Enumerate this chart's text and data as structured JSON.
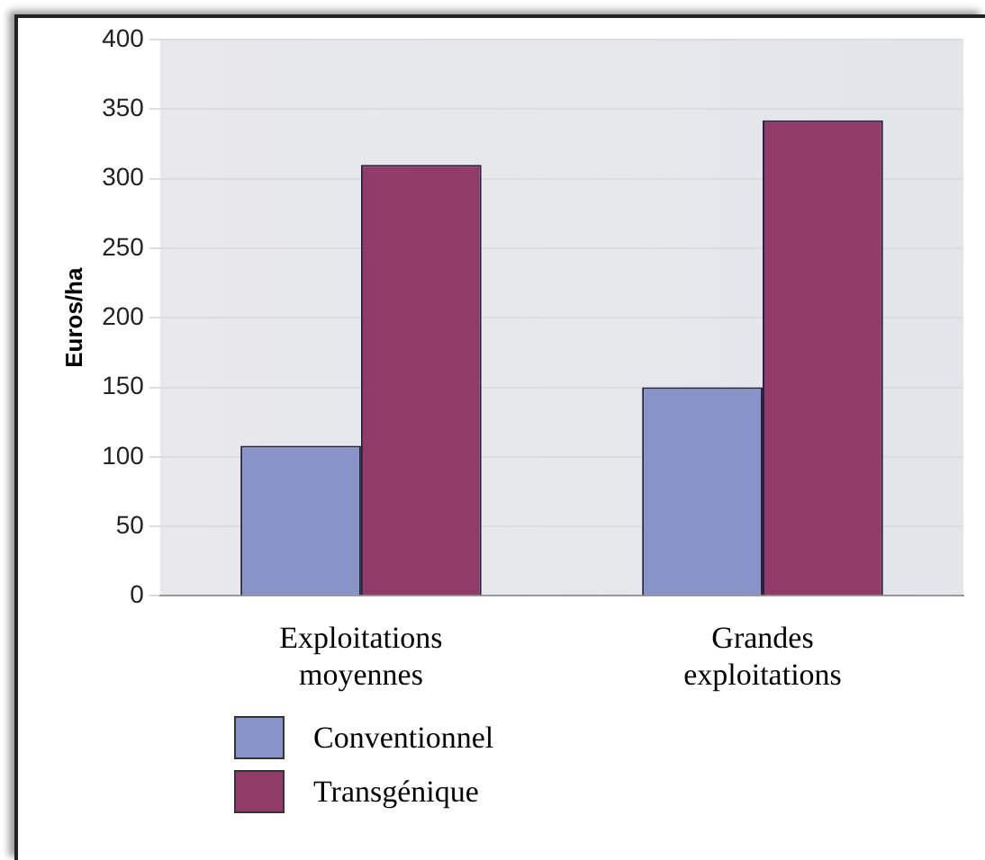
{
  "chart_data": {
    "type": "bar",
    "ylabel": "Euros/ha",
    "categories": [
      "Exploitations moyennes",
      "Grandes exploitations"
    ],
    "series": [
      {
        "name": "Conventionnel",
        "color": "#8894c8",
        "values": [
          108,
          150
        ]
      },
      {
        "name": "Transgénique",
        "color": "#913c68",
        "values": [
          310,
          342
        ]
      }
    ],
    "ylim": [
      0,
      400
    ],
    "yticks": [
      0,
      50,
      100,
      150,
      200,
      250,
      300,
      350,
      400
    ],
    "grid": "y",
    "legend": "bottom left"
  }
}
